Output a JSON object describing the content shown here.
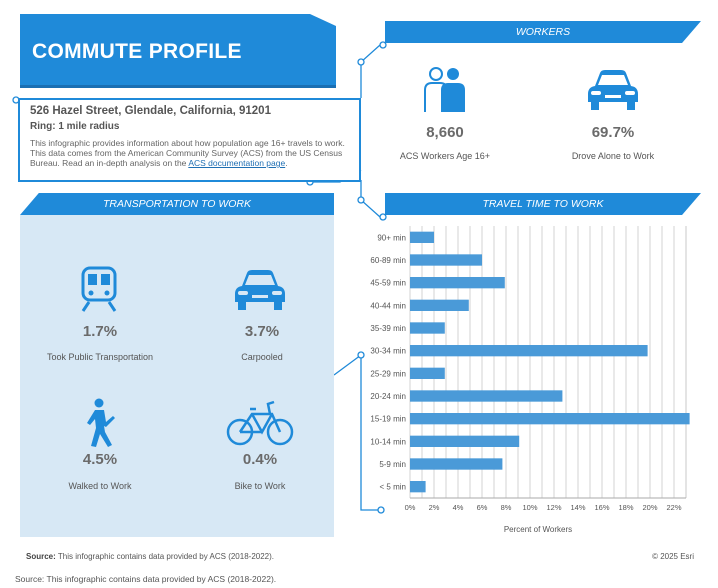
{
  "title": "COMMUTE PROFILE",
  "location": {
    "address": "526 Hazel Street, Glendale, California, 91201",
    "ring": "Ring: 1 mile radius",
    "description": "This infographic provides information about how population age 16+ travels to work. This data comes from the American Community Survey (ACS) from the US Census Bureau. Read an in-depth analysis on the",
    "link_text": "ACS documentation page",
    "description_end": "."
  },
  "workers": {
    "banner": "WORKERS",
    "stats": [
      {
        "value": "8,660",
        "label": "ACS Workers Age 16+",
        "icon": "workers-icon"
      },
      {
        "value": "69.7%",
        "label": "Drove Alone to Work",
        "icon": "car-icon"
      }
    ]
  },
  "transportation": {
    "banner": "TRANSPORTATION TO WORK",
    "stats": [
      {
        "value": "1.7%",
        "label": "Took Public Transportation",
        "icon": "train-icon"
      },
      {
        "value": "3.7%",
        "label": "Carpooled",
        "icon": "car-icon"
      },
      {
        "value": "4.5%",
        "label": "Walked to Work",
        "icon": "walking-person-icon"
      },
      {
        "value": "0.4%",
        "label": "Bike to Work",
        "icon": "bicycle-icon"
      }
    ]
  },
  "travel_time": {
    "banner": "TRAVEL TIME TO WORK"
  },
  "colors": {
    "accent": "#1f8ad9",
    "bar": "#4a9ad8",
    "panel": "#d7e8f5"
  },
  "chart_data": {
    "type": "bar",
    "orientation": "horizontal",
    "title": "TRAVEL TIME TO WORK",
    "xlabel": "Percent of Workers",
    "ylabel": "",
    "categories": [
      "90+ min",
      "60-89 min",
      "45-59 min",
      "40-44 min",
      "35-39 min",
      "30-34 min",
      "25-29 min",
      "20-24 min",
      "15-19 min",
      "10-14 min",
      "5-9 min",
      "< 5 min"
    ],
    "values": [
      2.0,
      6.0,
      7.9,
      4.9,
      2.9,
      19.8,
      2.9,
      12.7,
      23.3,
      9.1,
      7.7,
      1.3
    ],
    "xlim": [
      0,
      23
    ],
    "xticks": [
      "0%",
      "2%",
      "4%",
      "6%",
      "8%",
      "10%",
      "12%",
      "14%",
      "16%",
      "18%",
      "20%",
      "22%"
    ],
    "grid": true
  },
  "footer": {
    "source_label": "Source:",
    "source_text": "This infographic contains data provided by ACS (2018-2022).",
    "copyright": "© 2025 Esri",
    "source_full": "Source: This infographic contains data provided by ACS (2018-2022)."
  }
}
